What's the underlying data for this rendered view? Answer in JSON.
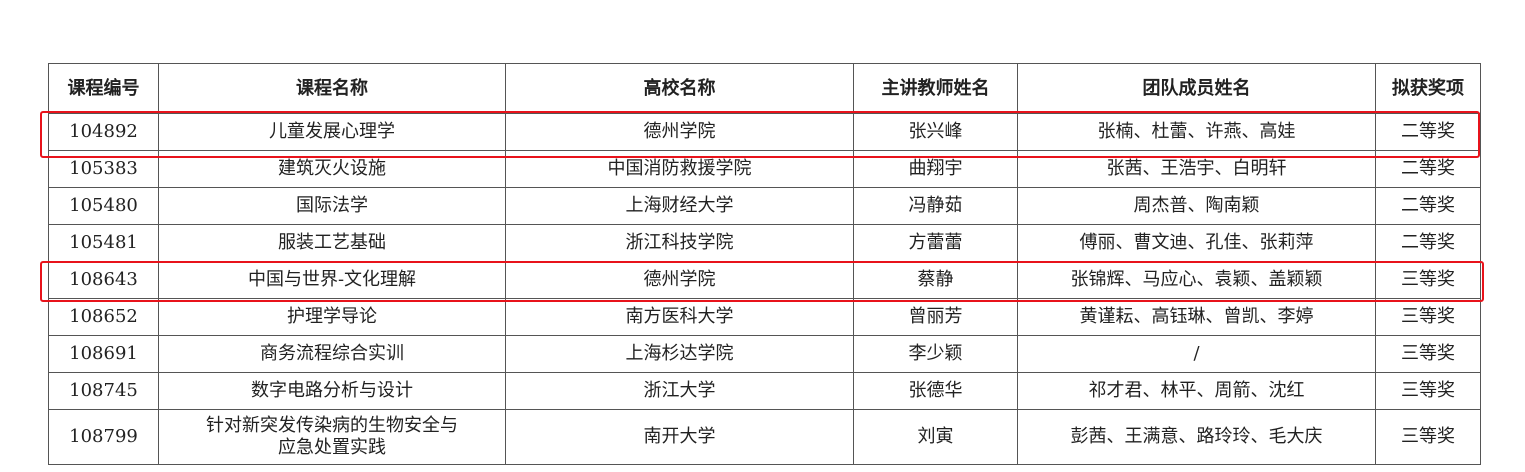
{
  "table": {
    "headers": [
      "课程编号",
      "课程名称",
      "高校名称",
      "主讲教师姓名",
      "团队成员姓名",
      "拟获奖项"
    ],
    "rows": [
      {
        "id": "104892",
        "course": "儿童发展心理学",
        "school": "德州学院",
        "teacher": "张兴峰",
        "team": "张楠、杜蕾、许燕、高娃",
        "award": "二等奖",
        "highlighted": true
      },
      {
        "id": "105383",
        "course": "建筑灭火设施",
        "school": "中国消防救援学院",
        "teacher": "曲翔宇",
        "team": "张茜、王浩宇、白明轩",
        "award": "二等奖",
        "highlighted": false
      },
      {
        "id": "105480",
        "course": "国际法学",
        "school": "上海财经大学",
        "teacher": "冯静茹",
        "team": "周杰普、陶南颖",
        "award": "二等奖",
        "highlighted": false
      },
      {
        "id": "105481",
        "course": "服装工艺基础",
        "school": "浙江科技学院",
        "teacher": "方蕾蕾",
        "team": "傅丽、曹文迪、孔佳、张莉萍",
        "award": "二等奖",
        "highlighted": false
      },
      {
        "id": "108643",
        "course": "中国与世界-文化理解",
        "school": "德州学院",
        "teacher": "蔡静",
        "team": "张锦辉、马应心、袁颖、盖颖颖",
        "award": "三等奖",
        "highlighted": true
      },
      {
        "id": "108652",
        "course": "护理学导论",
        "school": "南方医科大学",
        "teacher": "曾丽芳",
        "team": "黄谨耘、高钰琳、曾凯、李婷",
        "award": "三等奖",
        "highlighted": false
      },
      {
        "id": "108691",
        "course": "商务流程综合实训",
        "school": "上海杉达学院",
        "teacher": "李少颖",
        "team": "/",
        "award": "三等奖",
        "highlighted": false
      },
      {
        "id": "108745",
        "course": "数字电路分析与设计",
        "school": "浙江大学",
        "teacher": "张德华",
        "team": "祁才君、林平、周箭、沈红",
        "award": "三等奖",
        "highlighted": false
      },
      {
        "id": "108799",
        "course": "针对新突发传染病的生物安全与应急处置实践",
        "course_lines": [
          "针对新突发传染病的生物安全与",
          "应急处置实践"
        ],
        "school": "南开大学",
        "teacher": "刘寅",
        "team": "彭茜、王满意、路玲玲、毛大庆",
        "award": "三等奖",
        "highlighted": false
      }
    ]
  },
  "colors": {
    "highlight": "#e8131b",
    "border": "#555555",
    "text": "#222222"
  }
}
